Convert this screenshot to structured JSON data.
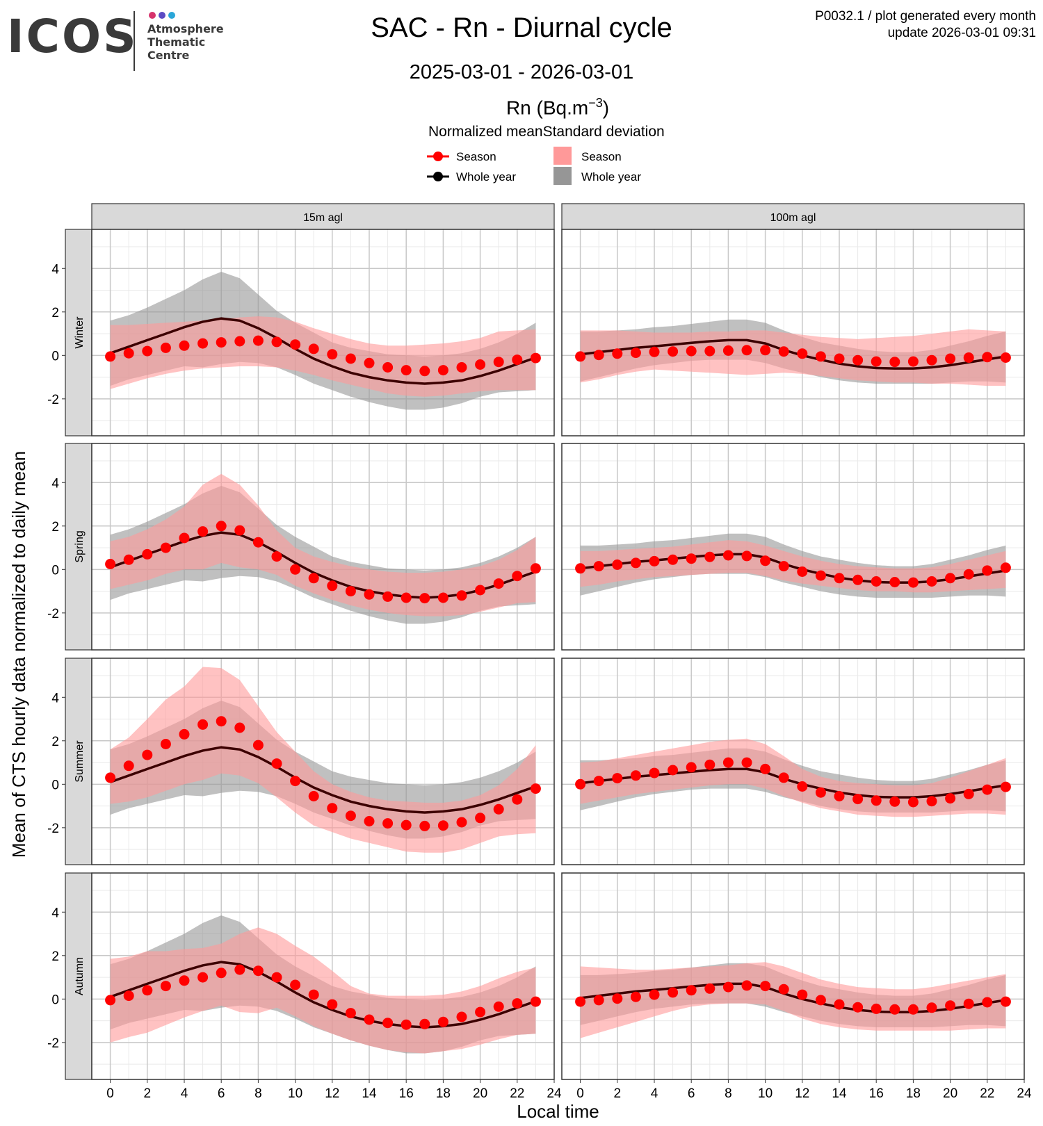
{
  "header": {
    "logo_word": "ICOS",
    "logo_sub": [
      "Atmosphere",
      "Thematic",
      "Centre"
    ],
    "logo_dot_colors": [
      "#d6336c",
      "#5b4bc4",
      "#2aa6d8"
    ],
    "title": "SAC - Rn - Diurnal cycle",
    "date_range": "2025-03-01 - 2026-03-01",
    "meta_line1": "P0032.1 / plot generated every month",
    "meta_line2": "update  2026-03-01 09:31",
    "unit_label": "Rn (Bq.m",
    "unit_sup": "−3",
    "unit_close": ")"
  },
  "legend": {
    "mean_title": "Normalized mean",
    "sd_title": "Standard deviation",
    "season": "Season",
    "whole_year": "Whole year"
  },
  "colors": {
    "season_point": "#ff0000",
    "season_band": "#ff9999",
    "whole_line": "#3c0000",
    "whole_band": "#969696",
    "strip_bg": "#d9d9d9",
    "grid_major": "#c8c8c8",
    "grid_minor": "#e9e9e9"
  },
  "chart_data": {
    "type": "line",
    "xlabel": "Local time",
    "ylabel": "Mean of CTS hourly data normalized to daily mean",
    "xlim": [
      -1,
      24
    ],
    "ylim": [
      -3.7,
      5.8
    ],
    "x_ticks": [
      0,
      2,
      4,
      6,
      8,
      10,
      12,
      14,
      16,
      18,
      20,
      22,
      24
    ],
    "y_ticks": [
      -2,
      0,
      2,
      4
    ],
    "columns": [
      "15m agl",
      "100m agl"
    ],
    "rows": [
      "Winter",
      "Spring",
      "Summer",
      "Autumn"
    ],
    "x": [
      0,
      1,
      2,
      3,
      4,
      5,
      6,
      7,
      8,
      9,
      10,
      11,
      12,
      13,
      14,
      15,
      16,
      17,
      18,
      19,
      20,
      21,
      22,
      23
    ],
    "whole_year": {
      "15m agl": {
        "mean": [
          0.1,
          0.4,
          0.7,
          1.0,
          1.3,
          1.55,
          1.7,
          1.6,
          1.25,
          0.8,
          0.3,
          -0.15,
          -0.5,
          -0.8,
          -1.0,
          -1.15,
          -1.25,
          -1.3,
          -1.25,
          -1.15,
          -0.95,
          -0.7,
          -0.4,
          -0.1
        ],
        "lower": [
          -1.4,
          -1.1,
          -0.9,
          -0.7,
          -0.5,
          -0.55,
          -0.4,
          -0.3,
          -0.35,
          -0.55,
          -0.9,
          -1.3,
          -1.6,
          -1.9,
          -2.15,
          -2.35,
          -2.5,
          -2.5,
          -2.4,
          -2.2,
          -1.9,
          -1.7,
          -1.65,
          -1.6
        ],
        "upper": [
          1.6,
          1.85,
          2.2,
          2.6,
          3.0,
          3.5,
          3.85,
          3.55,
          2.8,
          2.05,
          1.5,
          1.05,
          0.6,
          0.35,
          0.2,
          0.05,
          0.0,
          -0.05,
          0.0,
          0.1,
          0.3,
          0.6,
          1.0,
          1.5
        ]
      },
      "100m agl": {
        "mean": [
          0.05,
          0.15,
          0.25,
          0.35,
          0.42,
          0.5,
          0.58,
          0.65,
          0.7,
          0.7,
          0.55,
          0.25,
          0.0,
          -0.2,
          -0.38,
          -0.5,
          -0.58,
          -0.6,
          -0.6,
          -0.55,
          -0.45,
          -0.32,
          -0.18,
          -0.05
        ],
        "lower": [
          -1.2,
          -1.0,
          -0.8,
          -0.6,
          -0.45,
          -0.35,
          -0.25,
          -0.2,
          -0.2,
          -0.2,
          -0.35,
          -0.6,
          -0.8,
          -1.0,
          -1.15,
          -1.25,
          -1.3,
          -1.3,
          -1.3,
          -1.3,
          -1.25,
          -1.2,
          -1.2,
          -1.25
        ],
        "upper": [
          1.1,
          1.1,
          1.15,
          1.2,
          1.3,
          1.35,
          1.45,
          1.55,
          1.65,
          1.65,
          1.5,
          1.15,
          0.85,
          0.6,
          0.45,
          0.3,
          0.2,
          0.15,
          0.15,
          0.25,
          0.45,
          0.65,
          0.9,
          1.1
        ]
      }
    },
    "season": {
      "Winter": {
        "15m agl": {
          "mean": [
            -0.05,
            0.1,
            0.2,
            0.35,
            0.45,
            0.55,
            0.6,
            0.65,
            0.68,
            0.62,
            0.5,
            0.3,
            0.05,
            -0.15,
            -0.35,
            -0.55,
            -0.68,
            -0.72,
            -0.68,
            -0.55,
            -0.42,
            -0.3,
            -0.2,
            -0.12
          ],
          "lower": [
            -1.55,
            -1.3,
            -1.05,
            -0.85,
            -0.7,
            -0.6,
            -0.55,
            -0.5,
            -0.5,
            -0.55,
            -0.7,
            -0.9,
            -1.15,
            -1.35,
            -1.55,
            -1.75,
            -1.85,
            -1.9,
            -1.85,
            -1.75,
            -1.65,
            -1.6,
            -1.6,
            -1.6
          ],
          "upper": [
            1.4,
            1.4,
            1.45,
            1.5,
            1.55,
            1.6,
            1.65,
            1.75,
            1.8,
            1.75,
            1.55,
            1.25,
            1.0,
            0.75,
            0.55,
            0.45,
            0.45,
            0.5,
            0.55,
            0.65,
            0.8,
            1.1,
            1.15,
            1.2
          ]
        },
        "100m agl": {
          "mean": [
            -0.05,
            0.02,
            0.08,
            0.12,
            0.16,
            0.18,
            0.2,
            0.2,
            0.22,
            0.24,
            0.24,
            0.18,
            0.08,
            -0.05,
            -0.15,
            -0.22,
            -0.28,
            -0.3,
            -0.28,
            -0.22,
            -0.15,
            -0.1,
            -0.08,
            -0.1
          ],
          "lower": [
            -1.25,
            -1.1,
            -0.9,
            -0.75,
            -0.65,
            -0.7,
            -0.75,
            -0.8,
            -0.85,
            -0.9,
            -0.85,
            -0.8,
            -0.85,
            -0.95,
            -1.05,
            -1.15,
            -1.2,
            -1.25,
            -1.25,
            -1.3,
            -1.3,
            -1.35,
            -1.4,
            -1.4
          ],
          "upper": [
            1.15,
            1.15,
            1.15,
            1.1,
            1.05,
            1.05,
            1.05,
            1.1,
            1.1,
            1.15,
            1.15,
            1.05,
            0.95,
            0.85,
            0.8,
            0.75,
            0.8,
            0.85,
            0.9,
            1.0,
            1.1,
            1.2,
            1.15,
            1.1
          ]
        }
      },
      "Spring": {
        "15m agl": {
          "mean": [
            0.25,
            0.45,
            0.7,
            1.0,
            1.45,
            1.75,
            2.0,
            1.8,
            1.25,
            0.6,
            0.0,
            -0.4,
            -0.75,
            -1.0,
            -1.15,
            -1.25,
            -1.3,
            -1.32,
            -1.3,
            -1.2,
            -0.95,
            -0.65,
            -0.3,
            0.05
          ],
          "lower": [
            -0.9,
            -0.7,
            -0.5,
            -0.2,
            0.0,
            0.0,
            0.3,
            0.1,
            0.0,
            -0.25,
            -0.75,
            -1.1,
            -1.4,
            -1.65,
            -1.85,
            -2.0,
            -2.1,
            -2.15,
            -2.15,
            -2.1,
            -1.95,
            -1.75,
            -1.55,
            -1.5
          ],
          "upper": [
            1.3,
            1.5,
            1.85,
            2.3,
            2.9,
            3.9,
            4.4,
            3.9,
            2.95,
            1.8,
            1.0,
            0.6,
            0.35,
            0.15,
            0.0,
            -0.1,
            -0.15,
            -0.15,
            -0.1,
            0.0,
            0.15,
            0.45,
            0.9,
            1.5
          ]
        },
        "100m agl": {
          "mean": [
            0.05,
            0.15,
            0.22,
            0.3,
            0.38,
            0.45,
            0.5,
            0.58,
            0.65,
            0.62,
            0.4,
            0.15,
            -0.1,
            -0.28,
            -0.4,
            -0.48,
            -0.55,
            -0.58,
            -0.6,
            -0.55,
            -0.4,
            -0.22,
            -0.05,
            0.08
          ],
          "lower": [
            -0.8,
            -0.7,
            -0.55,
            -0.45,
            -0.35,
            -0.3,
            -0.25,
            -0.2,
            -0.15,
            -0.15,
            -0.3,
            -0.5,
            -0.65,
            -0.75,
            -0.85,
            -0.95,
            -1.0,
            -1.0,
            -1.05,
            -1.05,
            -1.0,
            -0.95,
            -0.9,
            -0.85
          ],
          "upper": [
            0.85,
            0.85,
            0.9,
            0.95,
            1.0,
            1.05,
            1.15,
            1.25,
            1.35,
            1.3,
            1.1,
            0.85,
            0.6,
            0.4,
            0.25,
            0.15,
            0.1,
            0.05,
            0.05,
            0.1,
            0.25,
            0.45,
            0.65,
            0.85
          ]
        }
      },
      "Summer": {
        "15m agl": {
          "mean": [
            0.3,
            0.85,
            1.35,
            1.85,
            2.3,
            2.75,
            2.9,
            2.6,
            1.8,
            0.95,
            0.15,
            -0.55,
            -1.1,
            -1.45,
            -1.7,
            -1.8,
            -1.88,
            -1.92,
            -1.9,
            -1.75,
            -1.55,
            -1.15,
            -0.7,
            -0.2
          ],
          "lower": [
            -0.9,
            -0.8,
            -0.6,
            -0.3,
            0.0,
            0.2,
            0.5,
            0.4,
            0.05,
            -0.6,
            -1.3,
            -1.9,
            -2.2,
            -2.5,
            -2.7,
            -2.9,
            -3.1,
            -3.15,
            -3.15,
            -3.0,
            -2.7,
            -2.4,
            -2.3,
            -2.25
          ],
          "upper": [
            1.6,
            2.15,
            3.0,
            3.9,
            4.5,
            5.4,
            5.35,
            4.8,
            3.6,
            2.4,
            1.5,
            0.6,
            0.0,
            -0.35,
            -0.6,
            -0.75,
            -0.8,
            -0.85,
            -0.85,
            -0.75,
            -0.5,
            -0.05,
            0.7,
            1.8
          ]
        },
        "100m agl": {
          "mean": [
            0.0,
            0.15,
            0.28,
            0.4,
            0.52,
            0.65,
            0.78,
            0.9,
            1.0,
            1.0,
            0.7,
            0.3,
            -0.1,
            -0.38,
            -0.55,
            -0.68,
            -0.75,
            -0.8,
            -0.82,
            -0.78,
            -0.65,
            -0.45,
            -0.25,
            -0.12
          ],
          "lower": [
            -0.9,
            -0.75,
            -0.6,
            -0.45,
            -0.35,
            -0.25,
            -0.15,
            -0.05,
            0.0,
            0.0,
            -0.2,
            -0.55,
            -0.85,
            -1.1,
            -1.25,
            -1.4,
            -1.45,
            -1.5,
            -1.5,
            -1.45,
            -1.4,
            -1.35,
            -1.35,
            -1.4
          ],
          "upper": [
            1.0,
            1.05,
            1.2,
            1.35,
            1.5,
            1.65,
            1.8,
            1.95,
            2.05,
            2.1,
            1.85,
            1.3,
            0.7,
            0.35,
            0.15,
            0.05,
            0.0,
            -0.05,
            -0.05,
            0.05,
            0.3,
            0.6,
            0.9,
            1.2
          ]
        }
      },
      "Autumn": {
        "15m agl": {
          "mean": [
            -0.05,
            0.15,
            0.4,
            0.6,
            0.85,
            1.0,
            1.2,
            1.35,
            1.3,
            1.0,
            0.65,
            0.2,
            -0.25,
            -0.65,
            -0.95,
            -1.1,
            -1.18,
            -1.15,
            -1.05,
            -0.82,
            -0.6,
            -0.35,
            -0.2,
            -0.12
          ],
          "lower": [
            -2.0,
            -1.75,
            -1.55,
            -1.2,
            -0.85,
            -0.55,
            -0.3,
            -0.6,
            -0.65,
            -0.4,
            -0.8,
            -1.25,
            -1.6,
            -1.9,
            -2.15,
            -2.35,
            -2.45,
            -2.5,
            -2.4,
            -2.3,
            -2.1,
            -1.85,
            -1.65,
            -1.6
          ],
          "upper": [
            1.85,
            1.95,
            2.2,
            2.2,
            2.3,
            2.35,
            2.55,
            3.0,
            3.3,
            3.0,
            2.45,
            1.95,
            1.3,
            0.6,
            0.25,
            0.15,
            0.15,
            0.15,
            0.2,
            0.35,
            0.6,
            0.95,
            1.25,
            1.45
          ]
        },
        "100m agl": {
          "mean": [
            -0.12,
            -0.05,
            0.02,
            0.1,
            0.2,
            0.3,
            0.4,
            0.48,
            0.55,
            0.62,
            0.6,
            0.45,
            0.2,
            -0.05,
            -0.25,
            -0.38,
            -0.45,
            -0.48,
            -0.48,
            -0.4,
            -0.3,
            -0.22,
            -0.15,
            -0.12
          ],
          "lower": [
            -1.8,
            -1.55,
            -1.3,
            -1.05,
            -0.8,
            -0.55,
            -0.35,
            -0.25,
            -0.2,
            -0.2,
            -0.25,
            -0.55,
            -0.9,
            -1.15,
            -1.3,
            -1.4,
            -1.45,
            -1.45,
            -1.45,
            -1.45,
            -1.45,
            -1.4,
            -1.35,
            -1.35
          ],
          "upper": [
            1.5,
            1.45,
            1.4,
            1.35,
            1.35,
            1.4,
            1.45,
            1.5,
            1.55,
            1.65,
            1.7,
            1.5,
            1.2,
            0.9,
            0.7,
            0.55,
            0.5,
            0.45,
            0.45,
            0.55,
            0.7,
            0.85,
            1.0,
            1.15
          ]
        }
      }
    }
  }
}
